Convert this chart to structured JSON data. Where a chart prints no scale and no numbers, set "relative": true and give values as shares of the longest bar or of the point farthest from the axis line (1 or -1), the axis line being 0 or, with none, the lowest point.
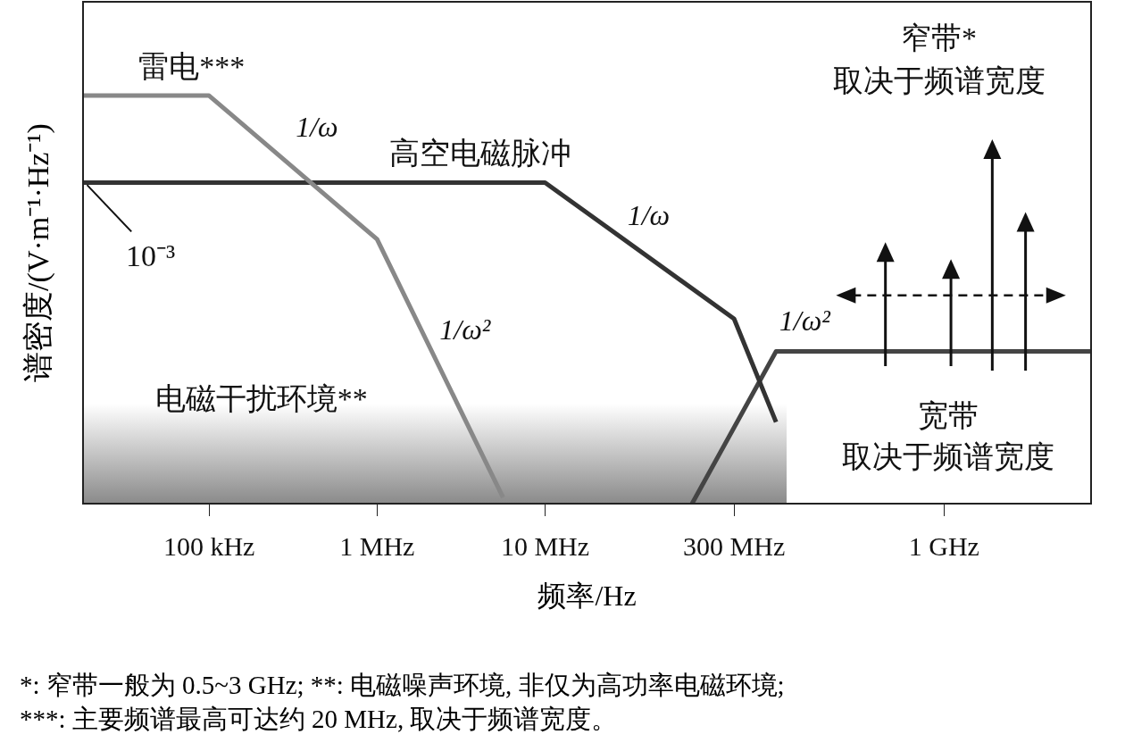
{
  "chart_data": {
    "type": "line",
    "relative": true,
    "xlabel": "频率/Hz",
    "ylabel": "谱密度/(V·m⁻¹·Hz⁻¹)",
    "categories": [
      null,
      null,
      null,
      null,
      null,
      null,
      "100 kHz",
      null,
      null,
      null,
      null,
      null,
      null,
      null,
      "1 MHz",
      null,
      null,
      null,
      null,
      null,
      null,
      null,
      "10 MHz",
      null,
      null,
      null,
      null,
      null,
      null,
      null,
      null,
      "300 MHz",
      null,
      null,
      null,
      null,
      null,
      null,
      null,
      null,
      null,
      "1 GHz",
      null,
      null,
      null,
      null,
      null,
      null,
      null
    ],
    "series": [
      {
        "name": "雷电***",
        "color": "#888888",
        "values": [
          1,
          null,
          null,
          null,
          null,
          null,
          1,
          null,
          null,
          null,
          null,
          null,
          null,
          null,
          0.648,
          null,
          null,
          null,
          null,
          null,
          0.015,
          null,
          null,
          null,
          null,
          null,
          null,
          null,
          null,
          null,
          null,
          null,
          null,
          null,
          null,
          null,
          null,
          null,
          null,
          null,
          null,
          null,
          null,
          null,
          null,
          null,
          null,
          null,
          null
        ]
      },
      {
        "name": "高空电磁脉冲",
        "color": "#333333",
        "values": [
          0.787,
          null,
          null,
          null,
          null,
          null,
          null,
          null,
          null,
          null,
          null,
          null,
          null,
          null,
          null,
          null,
          null,
          null,
          null,
          null,
          null,
          null,
          0.787,
          null,
          null,
          null,
          null,
          null,
          null,
          null,
          null,
          0.453,
          null,
          0.2,
          null,
          null,
          null,
          null,
          null,
          null,
          null,
          null,
          null,
          null,
          null,
          null,
          null,
          null,
          null
        ]
      },
      {
        "color": "#444444",
        "values": [
          null,
          null,
          null,
          null,
          null,
          null,
          null,
          null,
          null,
          null,
          null,
          null,
          null,
          null,
          null,
          null,
          null,
          null,
          null,
          null,
          null,
          null,
          null,
          null,
          null,
          null,
          null,
          null,
          null,
          0,
          null,
          null,
          null,
          0.373,
          null,
          null,
          null,
          null,
          null,
          null,
          null,
          null,
          null,
          null,
          null,
          null,
          null,
          null,
          0.373
        ]
      }
    ],
    "annotations": [
      "1/ω",
      "10⁻³",
      "1/ω²",
      "1/ω",
      "1/ω²",
      "电磁干扰环境**",
      "窄带*",
      "取决于频谱宽度",
      "宽带",
      "取决于频谱宽度",
      "*: 窄带一般为 0.5~3 GHz; **: 电磁噪声环境, 非仅为高功率电磁环境;",
      "***: 主要频谱最高可达约 20 MHz, 取决于频谱宽度。"
    ],
    "grid": false,
    "legend": false,
    "marker": "none",
    "line_style": "solid"
  }
}
